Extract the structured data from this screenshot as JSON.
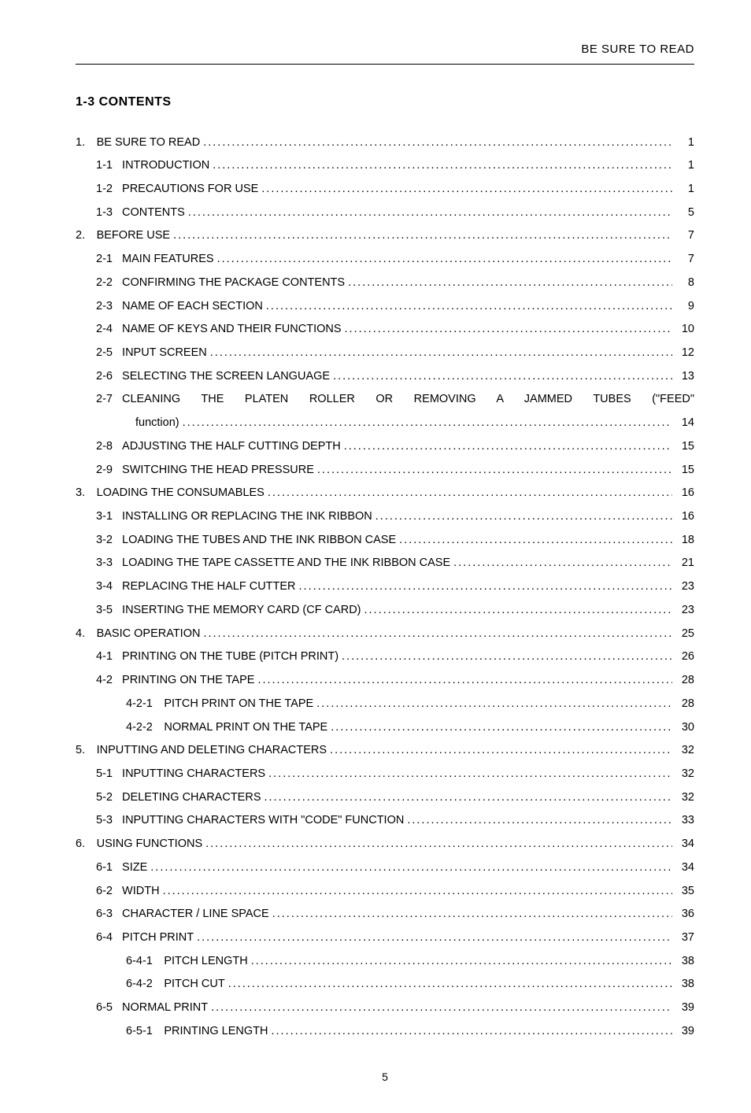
{
  "header": "BE SURE TO READ",
  "section_title": "1-3  CONTENTS",
  "footer_page": "5",
  "toc": [
    {
      "level": 0,
      "num": "1.",
      "title": "BE SURE TO READ",
      "page": "1"
    },
    {
      "level": 1,
      "num": "1-1",
      "title": "INTRODUCTION",
      "page": "1"
    },
    {
      "level": 1,
      "num": "1-2",
      "title": "PRECAUTIONS FOR USE",
      "page": "1"
    },
    {
      "level": 1,
      "num": "1-3",
      "title": "CONTENTS",
      "page": "5"
    },
    {
      "level": 0,
      "num": "2.",
      "title": "BEFORE USE",
      "page": "7"
    },
    {
      "level": 1,
      "num": "2-1",
      "title": "MAIN FEATURES",
      "page": "7"
    },
    {
      "level": 1,
      "num": "2-2",
      "title": "CONFIRMING THE PACKAGE CONTENTS",
      "page": "8"
    },
    {
      "level": 1,
      "num": "2-3",
      "title": "NAME OF EACH SECTION",
      "page": "9"
    },
    {
      "level": 1,
      "num": "2-4",
      "title": "NAME OF KEYS AND THEIR FUNCTIONS",
      "page": "10"
    },
    {
      "level": 1,
      "num": "2-5",
      "title": "INPUT SCREEN",
      "page": "12"
    },
    {
      "level": 1,
      "num": "2-6",
      "title": "SELECTING THE SCREEN LANGUAGE",
      "page": "13"
    },
    {
      "level": 1,
      "num": "2-7",
      "title_line1": "CLEANING THE PLATEN ROLLER OR REMOVING A JAMMED TUBES (\"FEED\"",
      "title_line2": "function)",
      "page": "14",
      "special": true
    },
    {
      "level": 1,
      "num": "2-8",
      "title": "ADJUSTING THE HALF CUTTING DEPTH",
      "page": "15"
    },
    {
      "level": 1,
      "num": "2-9",
      "title": "SWITCHING THE HEAD PRESSURE",
      "page": "15"
    },
    {
      "level": 0,
      "num": "3.",
      "title": "LOADING THE CONSUMABLES",
      "page": "16"
    },
    {
      "level": 1,
      "num": "3-1",
      "title": "INSTALLING OR REPLACING THE INK RIBBON",
      "page": "16"
    },
    {
      "level": 1,
      "num": "3-2",
      "title": "LOADING THE TUBES AND THE INK RIBBON CASE",
      "page": "18"
    },
    {
      "level": 1,
      "num": "3-3",
      "title": "LOADING THE TAPE CASSETTE AND THE INK RIBBON CASE",
      "page": "21"
    },
    {
      "level": 1,
      "num": "3-4",
      "title": "REPLACING THE HALF CUTTER",
      "page": "23"
    },
    {
      "level": 1,
      "num": "3-5",
      "title": "INSERTING THE MEMORY CARD (CF CARD)",
      "page": "23"
    },
    {
      "level": 0,
      "num": "4.",
      "title": "BASIC OPERATION",
      "page": "25"
    },
    {
      "level": 1,
      "num": "4-1",
      "title": "PRINTING ON THE TUBE (PITCH PRINT)",
      "page": "26"
    },
    {
      "level": 1,
      "num": "4-2",
      "title": "PRINTING ON THE TAPE",
      "page": "28"
    },
    {
      "level": 2,
      "num": "4-2-1",
      "title": "PITCH PRINT ON THE TAPE",
      "page": "28"
    },
    {
      "level": 2,
      "num": "4-2-2",
      "title": "NORMAL PRINT ON THE TAPE",
      "page": "30"
    },
    {
      "level": 0,
      "num": "5.",
      "title": "INPUTTING AND DELETING CHARACTERS",
      "page": "32"
    },
    {
      "level": 1,
      "num": "5-1",
      "title": "INPUTTING CHARACTERS",
      "page": "32"
    },
    {
      "level": 1,
      "num": "5-2",
      "title": "DELETING CHARACTERS",
      "page": "32"
    },
    {
      "level": 1,
      "num": "5-3",
      "title": "INPUTTING CHARACTERS WITH \"CODE\" FUNCTION",
      "page": "33"
    },
    {
      "level": 0,
      "num": "6.",
      "title": "USING FUNCTIONS",
      "page": "34"
    },
    {
      "level": 1,
      "num": "6-1",
      "title": "SIZE",
      "page": "34"
    },
    {
      "level": 1,
      "num": "6-2",
      "title": "WIDTH",
      "page": "35"
    },
    {
      "level": 1,
      "num": "6-3",
      "title": "CHARACTER / LINE SPACE",
      "page": "36"
    },
    {
      "level": 1,
      "num": "6-4",
      "title": "PITCH PRINT",
      "page": "37"
    },
    {
      "level": 2,
      "num": "6-4-1",
      "title": "PITCH LENGTH",
      "page": "38"
    },
    {
      "level": 2,
      "num": "6-4-2",
      "title": "PITCH CUT",
      "page": "38"
    },
    {
      "level": 1,
      "num": "6-5",
      "title": "NORMAL PRINT",
      "page": "39"
    },
    {
      "level": 2,
      "num": "6-5-1",
      "title": "PRINTING LENGTH",
      "page": "39"
    }
  ]
}
